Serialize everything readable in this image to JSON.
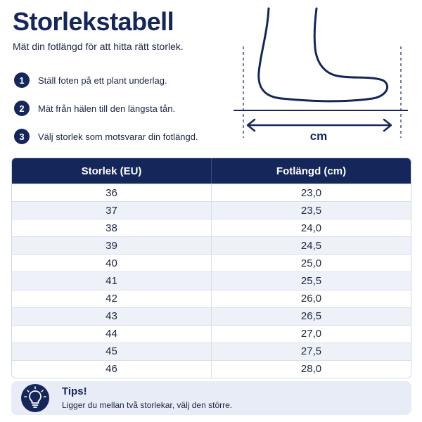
{
  "header": {
    "title": "Storlekstabell",
    "subtitle": "Mät din fotlängd för att hitta rätt storlek."
  },
  "steps": [
    {
      "number": "1",
      "text": "Ställ foten på ett plant underlag."
    },
    {
      "number": "2",
      "text": "Mät från hälen till den längsta tån."
    },
    {
      "number": "3",
      "text": "Välj storlek som motsvarar din fotlängd."
    }
  ],
  "illustration": {
    "icon": "foot-measure-illustration",
    "unit_label": "cm"
  },
  "table": {
    "columns": [
      "Storlek (EU)",
      "Fotlängd (cm)"
    ],
    "rows": [
      [
        "36",
        "23,0"
      ],
      [
        "37",
        "23,5"
      ],
      [
        "38",
        "24,0"
      ],
      [
        "39",
        "24,5"
      ],
      [
        "40",
        "25,0"
      ],
      [
        "41",
        "25,5"
      ],
      [
        "42",
        "26,0"
      ],
      [
        "43",
        "26,5"
      ],
      [
        "44",
        "27,0"
      ],
      [
        "45",
        "27,5"
      ],
      [
        "46",
        "28,0"
      ]
    ]
  },
  "tips": {
    "icon": "lightbulb-icon",
    "title": "Tips!",
    "text": "Ligger du mellan två storlekar, välj den större."
  },
  "colors": {
    "primary": "#14265a",
    "row_alt": "#eef2f8",
    "tips_bg": "#e8ecf6"
  }
}
